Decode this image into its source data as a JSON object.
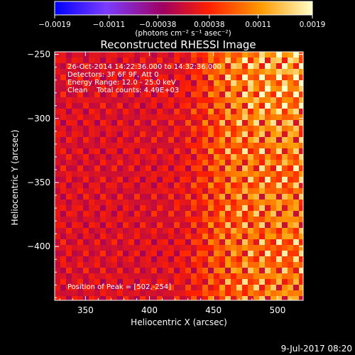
{
  "chart_data": {
    "type": "heatmap",
    "title": "Reconstructed RHESSI Image",
    "xlabel": "Heliocentric X (arcsec)",
    "ylabel": "Heliocentric Y (arcsec)",
    "xlim": [
      326,
      520
    ],
    "ylim": [
      -442,
      -248
    ],
    "xticks": [
      350,
      400,
      450,
      500
    ],
    "yticks": [
      -250,
      -300,
      -350,
      -400
    ],
    "colorbar": {
      "min": -0.0019,
      "max": 0.0019,
      "tick_values": [
        -0.0019,
        -0.0011,
        -0.00038,
        0.00038,
        0.0011,
        0.0019
      ],
      "tick_labels": [
        "-0.0019",
        "-0.0011",
        "-0.00038",
        "0.00038",
        "0.0011",
        "0.0019"
      ],
      "unit_label": "(photons cm⁻² s⁻¹ asec⁻²)",
      "colors": [
        "#0000ff",
        "#7b3cff",
        "#a00060",
        "#ff2000",
        "#ff9a00",
        "#ffffc8"
      ]
    },
    "annotations": [
      "26-Oct-2014 14:22:36.000 to 14:32:36.000",
      "Detectors: 3F 6F 9F, Att 0",
      "Energy Range: 12.0 - 25.0 keV",
      "Clean    Total counts: 4.49E+03"
    ],
    "peak_label": "Position of Peak = [502,-254]",
    "peak": [
      502,
      -254
    ],
    "field": {
      "background": 0.0001,
      "bright_region_start_x": 446,
      "bright_region_peak": 0.0019,
      "ripple_amplitude": 0.0004,
      "ripple_period_arcsec": 13
    }
  },
  "footer": {
    "timestamp": "9-Jul-2017 08:20"
  }
}
